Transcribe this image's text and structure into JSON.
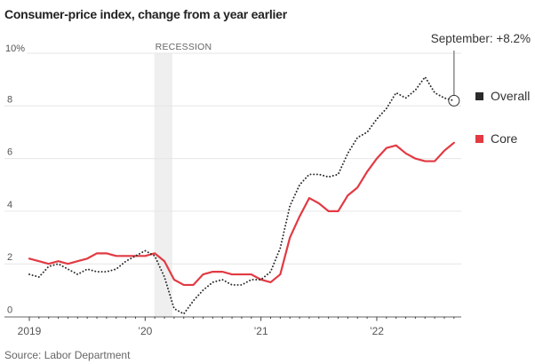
{
  "chart_data": {
    "type": "line",
    "title": "Consumer-price index, change from a year earlier",
    "source": "Source: Labor Department",
    "xlabel": "",
    "ylabel": "",
    "ylim": [
      0,
      10
    ],
    "y_ticks": [
      {
        "value": 0,
        "label": "0"
      },
      {
        "value": 2,
        "label": "2"
      },
      {
        "value": 4,
        "label": "4"
      },
      {
        "value": 6,
        "label": "6"
      },
      {
        "value": 8,
        "label": "8"
      },
      {
        "value": 10,
        "label": "10%"
      }
    ],
    "x_ticks": [
      {
        "index": 0,
        "label": "2019"
      },
      {
        "index": 12,
        "label": "’20"
      },
      {
        "index": 24,
        "label": "’21"
      },
      {
        "index": 36,
        "label": "’22"
      }
    ],
    "x": [
      "2019-01",
      "2019-02",
      "2019-03",
      "2019-04",
      "2019-05",
      "2019-06",
      "2019-07",
      "2019-08",
      "2019-09",
      "2019-10",
      "2019-11",
      "2019-12",
      "2020-01",
      "2020-02",
      "2020-03",
      "2020-04",
      "2020-05",
      "2020-06",
      "2020-07",
      "2020-08",
      "2020-09",
      "2020-10",
      "2020-11",
      "2020-12",
      "2021-01",
      "2021-02",
      "2021-03",
      "2021-04",
      "2021-05",
      "2021-06",
      "2021-07",
      "2021-08",
      "2021-09",
      "2021-10",
      "2021-11",
      "2021-12",
      "2022-01",
      "2022-02",
      "2022-03",
      "2022-04",
      "2022-05",
      "2022-06",
      "2022-07",
      "2022-08",
      "2022-09"
    ],
    "series": [
      {
        "name": "Overall",
        "color": "#2b2b2b",
        "style": "dotted",
        "values": [
          1.6,
          1.5,
          1.9,
          2.0,
          1.8,
          1.6,
          1.8,
          1.7,
          1.7,
          1.8,
          2.1,
          2.3,
          2.5,
          2.3,
          1.5,
          0.3,
          0.1,
          0.6,
          1.0,
          1.3,
          1.4,
          1.2,
          1.2,
          1.4,
          1.4,
          1.7,
          2.6,
          4.2,
          5.0,
          5.4,
          5.4,
          5.3,
          5.4,
          6.2,
          6.8,
          7.0,
          7.5,
          7.9,
          8.5,
          8.3,
          8.6,
          9.1,
          8.5,
          8.3,
          8.2
        ]
      },
      {
        "name": "Core",
        "color": "#e23a43",
        "style": "solid",
        "values": [
          2.2,
          2.1,
          2.0,
          2.1,
          2.0,
          2.1,
          2.2,
          2.4,
          2.4,
          2.3,
          2.3,
          2.3,
          2.3,
          2.4,
          2.1,
          1.4,
          1.2,
          1.2,
          1.6,
          1.7,
          1.7,
          1.6,
          1.6,
          1.6,
          1.4,
          1.3,
          1.6,
          3.0,
          3.8,
          4.5,
          4.3,
          4.0,
          4.0,
          4.6,
          4.9,
          5.5,
          6.0,
          6.4,
          6.5,
          6.2,
          6.0,
          5.9,
          5.9,
          6.3,
          6.6
        ]
      }
    ],
    "recession": {
      "label": "RECESSION",
      "start": "2020-02",
      "end": "2020-04",
      "color": "#efefef"
    },
    "annotation": {
      "label": "September: +8.2%",
      "series": "Overall",
      "x": "2022-09",
      "value": 8.2
    },
    "legend": {
      "placement": "right",
      "items": [
        {
          "name": "Overall",
          "color": "#2b2b2b"
        },
        {
          "name": "Core",
          "color": "#e23a43"
        }
      ]
    },
    "grid": true
  }
}
